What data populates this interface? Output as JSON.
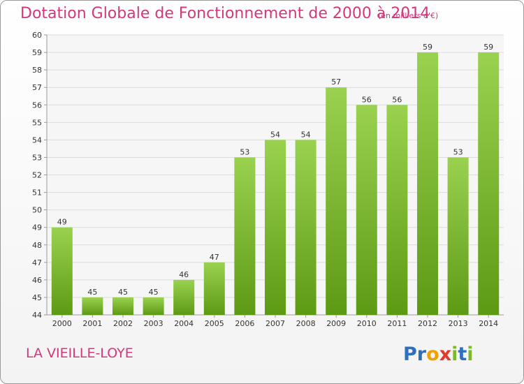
{
  "header": {
    "title": "Dotation Globale de Fonctionnement de 2000 à 2014",
    "unit": "(en milliers d'€)"
  },
  "footer": {
    "commune": "LA VIEILLE-LOYE",
    "logo_text": "Proxiti"
  },
  "colors": {
    "bar_top": "#9ad250",
    "bar_bottom": "#5d9a14",
    "title": "#d2387b",
    "grid": "#dcdcdc",
    "axis": "#9a9a9a"
  },
  "chart_data": {
    "type": "bar",
    "title": "Dotation Globale de Fonctionnement de 2000 à 2014",
    "subtitle": "(en milliers d'€)",
    "xlabel": "",
    "ylabel": "",
    "categories": [
      "2000",
      "2001",
      "2002",
      "2003",
      "2004",
      "2005",
      "2006",
      "2007",
      "2008",
      "2009",
      "2010",
      "2011",
      "2012",
      "2013",
      "2014"
    ],
    "values": [
      49,
      45,
      45,
      45,
      46,
      47,
      53,
      54,
      54,
      57,
      56,
      56,
      59,
      53,
      59
    ],
    "ylim": [
      44,
      60
    ],
    "yticks": [
      44,
      45,
      46,
      47,
      48,
      49,
      50,
      51,
      52,
      53,
      54,
      55,
      56,
      57,
      58,
      59,
      60
    ],
    "grid": true,
    "legend": "none"
  }
}
